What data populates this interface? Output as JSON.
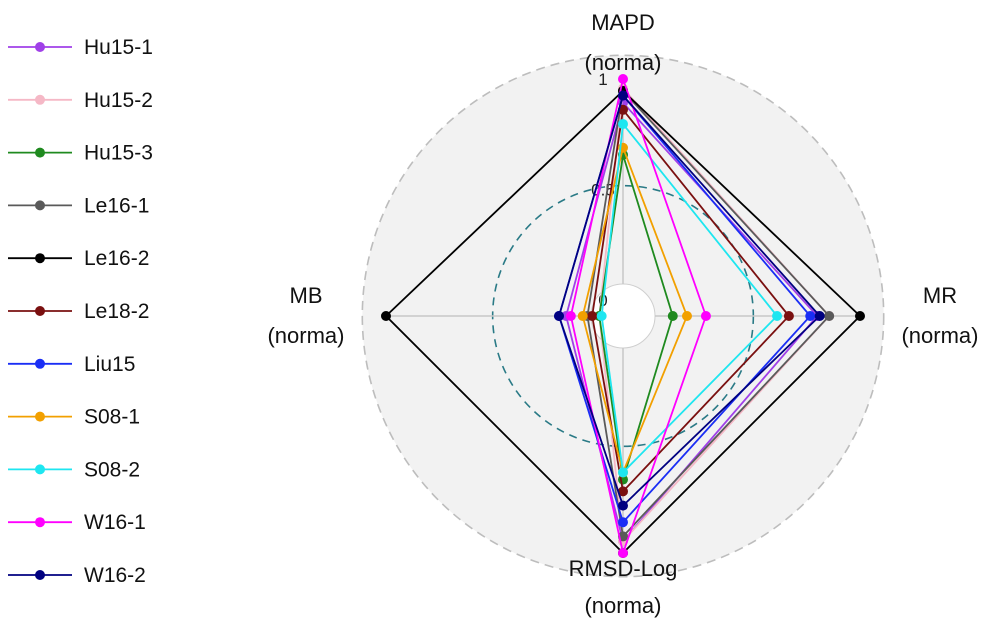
{
  "chart_data": {
    "type": "radar",
    "axes": [
      {
        "name": "MAPD",
        "unit": "(norma)"
      },
      {
        "name": "MR",
        "unit": "(norma)"
      },
      {
        "name": "RMSD-Log",
        "unit": "(norma)"
      },
      {
        "name": "MB",
        "unit": "(norma)"
      }
    ],
    "range": [
      0,
      1
    ],
    "tick_labels": [
      "0",
      "0.5",
      "1"
    ],
    "reference_circles": [
      {
        "value": 0.5,
        "style": "dashed",
        "color": "#2a7a86"
      },
      {
        "value": 1.25,
        "style": "dashed",
        "color": "#bdbdbd"
      }
    ],
    "background_color": "#f2f2f2",
    "legend_position": "left",
    "series": [
      {
        "name": "Hu15-1",
        "color": "#a040e8",
        "values": [
          0.9,
          0.82,
          0.95,
          0.24
        ]
      },
      {
        "name": "Hu15-2",
        "color": "#f5b8c6",
        "values": [
          0.96,
          0.87,
          0.95,
          0.1
        ]
      },
      {
        "name": "Hu15-3",
        "color": "#1f8a1f",
        "values": [
          0.68,
          0.21,
          0.69,
          0.1
        ]
      },
      {
        "name": "Le16-1",
        "color": "#5a5a5a",
        "values": [
          0.95,
          0.87,
          0.93,
          0.15
        ]
      },
      {
        "name": "Le16-2",
        "color": "#000000",
        "values": [
          0.95,
          1.0,
          1.0,
          1.0
        ]
      },
      {
        "name": "Le18-2",
        "color": "#7a1010",
        "values": [
          0.87,
          0.7,
          0.74,
          0.13
        ]
      },
      {
        "name": "Liu15",
        "color": "#1a2ef5",
        "values": [
          0.93,
          0.79,
          0.87,
          0.27
        ]
      },
      {
        "name": "S08-1",
        "color": "#f2a000",
        "values": [
          0.71,
          0.27,
          0.66,
          0.17
        ]
      },
      {
        "name": "S08-2",
        "color": "#1ee6f0",
        "values": [
          0.81,
          0.65,
          0.66,
          0.09
        ]
      },
      {
        "name": "W16-1",
        "color": "#ff00ff",
        "values": [
          1.0,
          0.35,
          1.0,
          0.22
        ]
      },
      {
        "name": "W16-2",
        "color": "#000080",
        "values": [
          0.93,
          0.83,
          0.8,
          0.27
        ]
      }
    ]
  }
}
